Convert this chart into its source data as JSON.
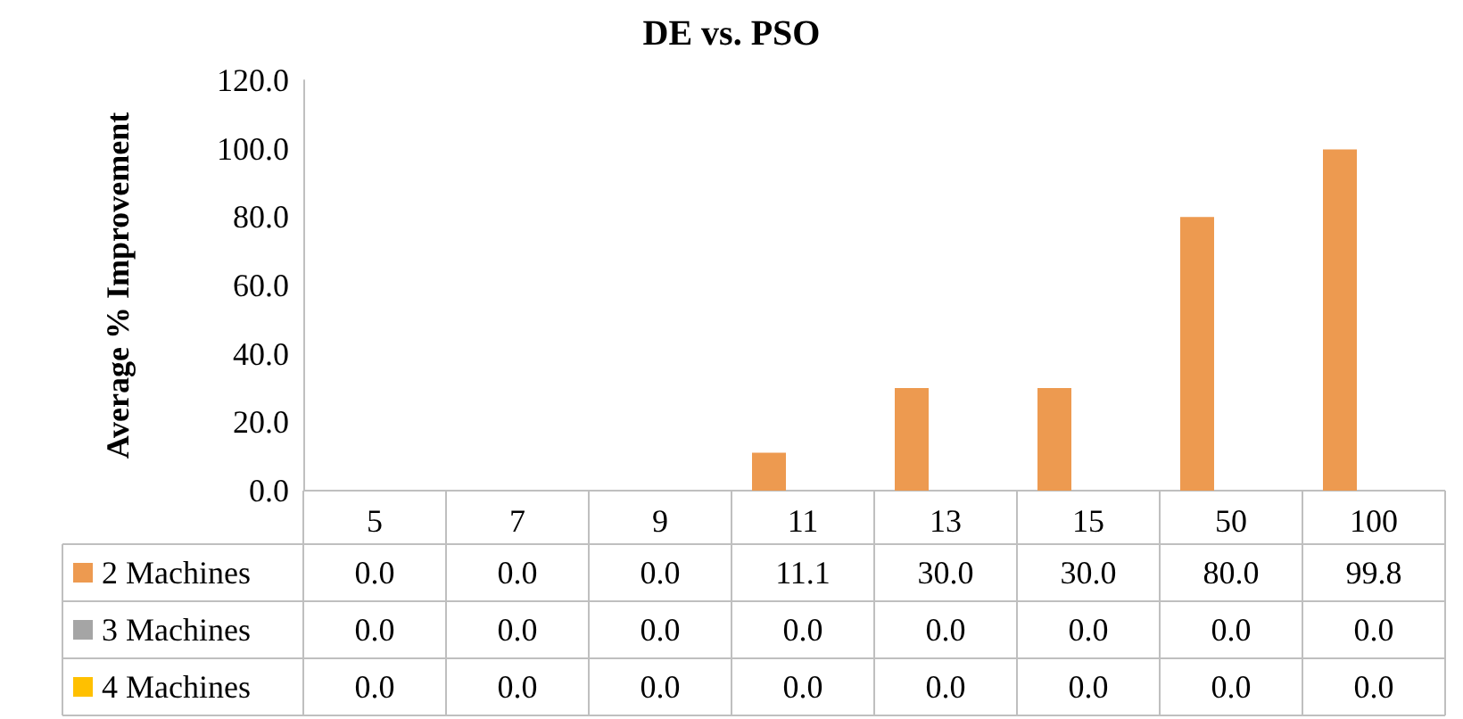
{
  "chart_data": {
    "type": "bar",
    "title": "DE vs. PSO",
    "ylabel": "Average % Improvement",
    "categories": [
      "5",
      "7",
      "9",
      "11",
      "13",
      "15",
      "50",
      "100"
    ],
    "series": [
      {
        "name": "2 Machines",
        "color": "#ed9a50",
        "values": [
          0,
          0,
          0,
          11.1,
          30,
          30,
          80,
          99.8
        ],
        "value_labels": [
          "0.0",
          "0.0",
          "0.0",
          "11.1",
          "30.0",
          "30.0",
          "80.0",
          "99.8"
        ]
      },
      {
        "name": "3 Machines",
        "color": "#a5a5a5",
        "values": [
          0,
          0,
          0,
          0,
          0,
          0,
          0,
          0
        ],
        "value_labels": [
          "0.0",
          "0.0",
          "0.0",
          "0.0",
          "0.0",
          "0.0",
          "0.0",
          "0.0"
        ]
      },
      {
        "name": "4 Machines",
        "color": "#ffc000",
        "values": [
          0,
          0,
          0,
          0,
          0,
          0,
          0,
          0
        ],
        "value_labels": [
          "0.0",
          "0.0",
          "0.0",
          "0.0",
          "0.0",
          "0.0",
          "0.0",
          "0.0"
        ]
      }
    ],
    "ylim": [
      0,
      120
    ],
    "yticks": [
      {
        "value": 0,
        "label": "0.0"
      },
      {
        "value": 20,
        "label": "20.0"
      },
      {
        "value": 40,
        "label": "40.0"
      },
      {
        "value": 60,
        "label": "60.0"
      },
      {
        "value": 80,
        "label": "80.0"
      },
      {
        "value": 100,
        "label": "100.0"
      },
      {
        "value": 120,
        "label": "120.0"
      }
    ],
    "grid": false,
    "legend": "bottom left"
  }
}
